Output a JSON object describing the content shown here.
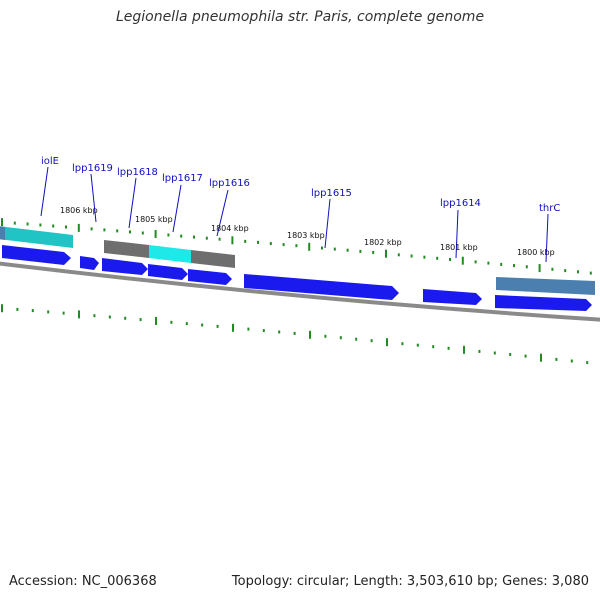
{
  "title": "Legionella pneumophila str. Paris, complete genome",
  "footer": {
    "accession": "Accession: NC_006368",
    "topology": "Topology: circular; Length: 3,503,610 bp; Genes: 3,080"
  },
  "colors": {
    "gene_arrow": "#1a1aee",
    "feature_cyan": "#22cccc",
    "feature_gray": "#707070",
    "feature_steel": "#4a7fb0",
    "tick": "#228b22",
    "backbone": "#888888",
    "label": "#1010c0"
  },
  "scale_labels": [
    "1806 kbp",
    "1805 kbp",
    "1804 kbp",
    "1803 kbp",
    "1802 kbp",
    "1801 kbp",
    "1800 kbp"
  ],
  "gene_labels": [
    "iolE",
    "lpp1619",
    "lpp1618",
    "lpp1617",
    "lpp1616",
    "lpp1615",
    "lpp1614",
    "thrC"
  ]
}
